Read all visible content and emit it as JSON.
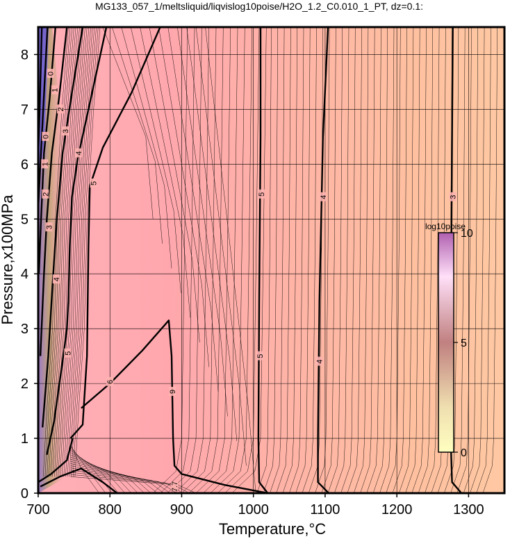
{
  "chart_data": {
    "type": "heatmap",
    "title": "MG133_057_1/meltsliquid/liqvislog10poise/H2O_1.2_C0.010_1_PT, dz=0.1:",
    "xlabel": "Temperature,°C",
    "ylabel": "Pressure,x100MPa",
    "xlim": [
      700,
      1350
    ],
    "ylim": [
      0,
      8.5
    ],
    "x_ticks": [
      700,
      800,
      900,
      1000,
      1100,
      1200,
      1300
    ],
    "y_ticks": [
      0,
      1,
      2,
      3,
      4,
      5,
      6,
      7,
      8
    ],
    "grid": true,
    "colorbar": {
      "title": "log10poise",
      "range": [
        0,
        10
      ],
      "ticks": [
        0,
        5,
        10
      ],
      "colors": [
        "#ffffc0",
        "#c08080",
        "#b060b0"
      ]
    },
    "contour_labels": [
      {
        "text": "5",
        "x": 1011,
        "y": 5.45
      },
      {
        "text": "4",
        "x": 1097,
        "y": 5.4
      },
      {
        "text": "3",
        "x": 1278,
        "y": 5.4
      },
      {
        "text": "5",
        "x": 1009,
        "y": 2.5
      },
      {
        "text": "4",
        "x": 1092,
        "y": 2.4
      },
      {
        "text": "9",
        "x": 887,
        "y": 1.85
      },
      {
        "text": "6",
        "x": 800,
        "y": 2.03
      },
      {
        "text": "5",
        "x": 741,
        "y": 2.55
      },
      {
        "text": "4",
        "x": 725,
        "y": 3.9
      },
      {
        "text": "3",
        "x": 715,
        "y": 4.85
      },
      {
        "text": "2",
        "x": 710,
        "y": 5.45
      },
      {
        "text": "1",
        "x": 709,
        "y": 6.0
      },
      {
        "text": "0",
        "x": 710,
        "y": 6.5
      },
      {
        "text": "3",
        "x": 738,
        "y": 6.6
      },
      {
        "text": "4",
        "x": 756,
        "y": 6.2
      },
      {
        "text": "5",
        "x": 777,
        "y": 5.65
      },
      {
        "text": "2",
        "x": 731,
        "y": 7.0
      },
      {
        "text": "1",
        "x": 723,
        "y": 7.35
      },
      {
        "text": "0",
        "x": 717,
        "y": 7.65
      },
      {
        "text": "7.7",
        "x": 890,
        "y": 0.12
      }
    ]
  }
}
